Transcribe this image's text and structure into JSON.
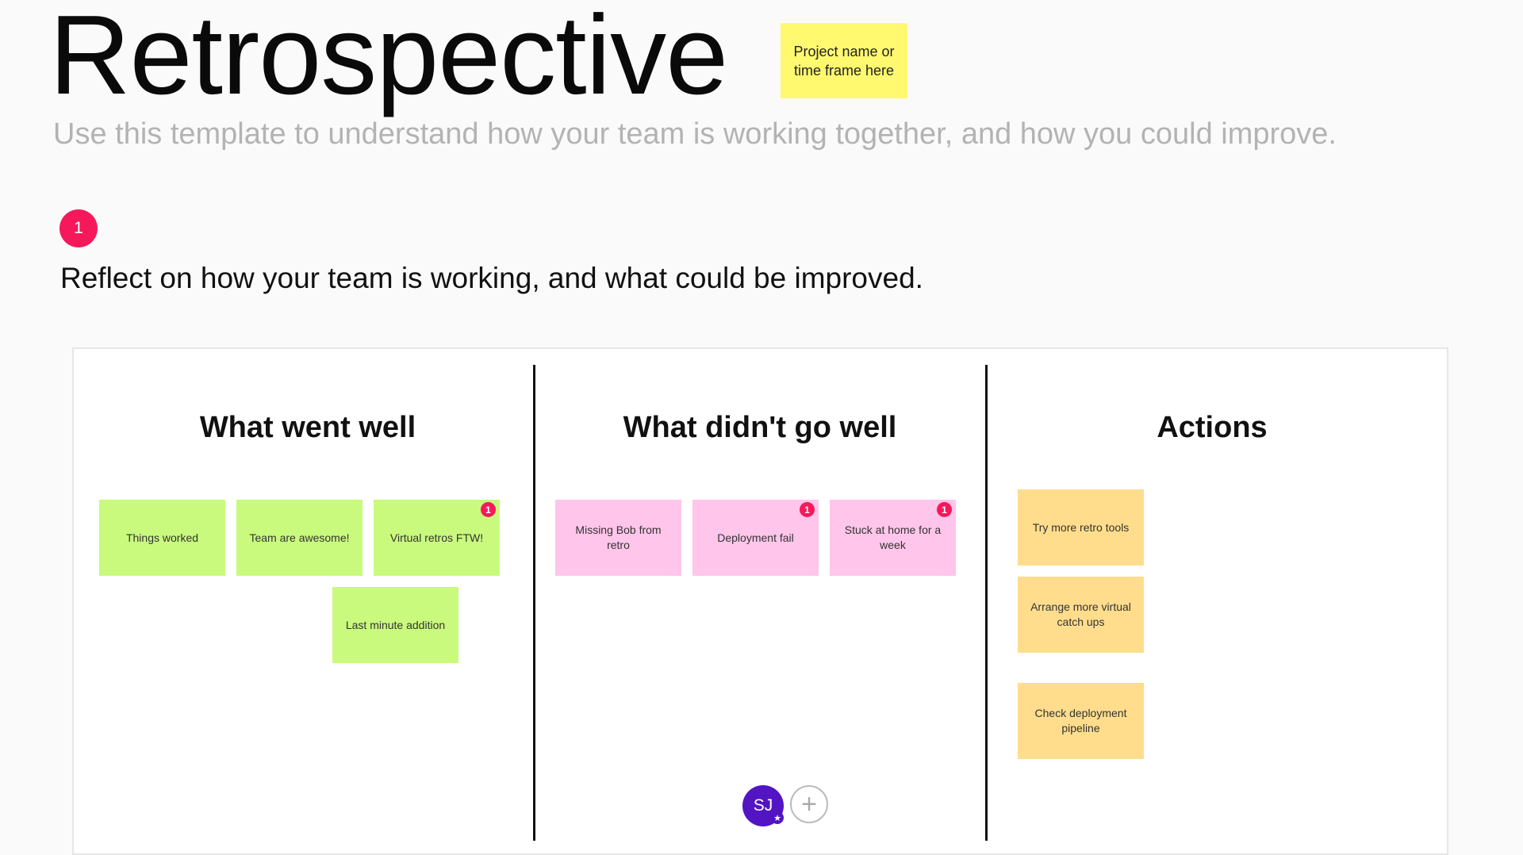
{
  "header": {
    "title": "Retrospective",
    "project_note": "Project name or time frame here",
    "subtitle": "Use this template to understand how your team is working together, and how you could improve."
  },
  "step": {
    "number": "1",
    "instruction": "Reflect on how your team is working, and what could be improved."
  },
  "colors": {
    "accent": "#f5195c",
    "green_note": "#c9fa7d",
    "pink_note": "#ffc5ea",
    "orange_note": "#ffdd8c",
    "yellow_note": "#fff970",
    "avatar": "#5314c4"
  },
  "columns": [
    {
      "title": "What went well",
      "color": "#c9fa7d",
      "notes": [
        {
          "text": "Things worked"
        },
        {
          "text": "Team are awesome!"
        },
        {
          "text": "Virtual retros FTW!",
          "badge": "1"
        },
        {
          "text": "Last minute addition"
        }
      ]
    },
    {
      "title": "What didn't go well",
      "color": "#ffc5ea",
      "notes": [
        {
          "text": "Missing Bob from retro"
        },
        {
          "text": "Deployment fail",
          "badge": "1"
        },
        {
          "text": "Stuck at home for a week",
          "badge": "1"
        }
      ]
    },
    {
      "title": "Actions",
      "color": "#ffdd8c",
      "notes": [
        {
          "text": "Try more retro tools"
        },
        {
          "text": "Arrange more virtual catch ups"
        },
        {
          "text": "Check deployment pipeline"
        }
      ]
    }
  ],
  "collaborators": {
    "avatar_initials": "SJ",
    "owner_icon": "star-icon",
    "add_icon": "plus-icon",
    "add_glyph": "+"
  }
}
